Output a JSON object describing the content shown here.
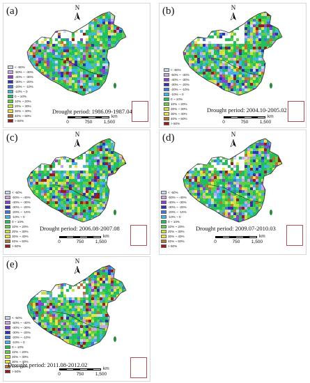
{
  "panels": [
    {
      "label": "(a)",
      "period": "Drought period: 1986.09-1987.04"
    },
    {
      "label": "(b)",
      "period": "Drought period: 2004.10-2005.02"
    },
    {
      "label": "(c)",
      "period": "Drought period: 2006.08-2007.08"
    },
    {
      "label": "(d)",
      "period": "Drought period: 2009.07-2010.03"
    },
    {
      "label": "(e)",
      "period": "Drought period: 2011.08-2012.02"
    }
  ],
  "legend": [
    {
      "label": "< -50%",
      "color": "#c8d8f0"
    },
    {
      "label": "-50% ~ -40%",
      "color": "#d0a0e8"
    },
    {
      "label": "-40% ~ -30%",
      "color": "#8a40d0"
    },
    {
      "label": "-30% ~ -20%",
      "color": "#3030b8"
    },
    {
      "label": "-20% ~ -10%",
      "color": "#3c78e0"
    },
    {
      "label": "-10% ~ 0",
      "color": "#40b4e8"
    },
    {
      "label": "0 ~ 10%",
      "color": "#20c060"
    },
    {
      "label": "10% ~ 20%",
      "color": "#60d040"
    },
    {
      "label": "20% ~ 30%",
      "color": "#c8e040"
    },
    {
      "label": "30% ~ 40%",
      "color": "#f0e040"
    },
    {
      "label": "40% ~ 50%",
      "color": "#c07030"
    },
    {
      "label": "> 50%",
      "color": "#a01818"
    }
  ],
  "scale": {
    "ticks": [
      "0",
      "750",
      "1,500"
    ],
    "unit": "km"
  },
  "north_label": "N",
  "colors": {
    "nodata": "#ffffff",
    "outline": "#303030"
  }
}
